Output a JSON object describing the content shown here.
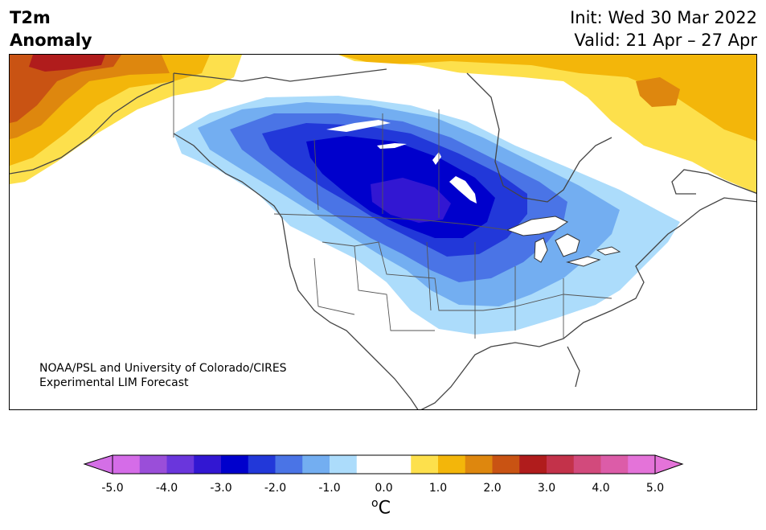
{
  "header": {
    "title_line1": "T2m",
    "title_line2": "Anomaly",
    "init_label": "Init: Wed 30 Mar 2022",
    "valid_label": "Valid: 21 Apr – 27 Apr"
  },
  "credit": {
    "line1": "NOAA/PSL and University of Colorado/CIRES",
    "line2": "Experimental LIM Forecast"
  },
  "colorbar": {
    "unit_base": "C",
    "unit_prefix": "o",
    "ticks": [
      "-5.0",
      "-4.0",
      "-3.0",
      "-2.0",
      "-1.0",
      "0.0",
      "1.0",
      "2.0",
      "3.0",
      "4.0",
      "5.0"
    ],
    "colors": [
      "#d56ce8",
      "#9a4ed9",
      "#6a36dc",
      "#3217d2",
      "#0000cc",
      "#2238d9",
      "#4a74e6",
      "#73aef1",
      "#acdcfb",
      "#ffffff",
      "#ffffff",
      "#fde04c",
      "#f3b60a",
      "#de870e",
      "#c95313",
      "#b01c1c",
      "#c3324a",
      "#d24a7c",
      "#dc5ca8",
      "#e473d9"
    ],
    "under_color": "#d46fe6",
    "over_color": "#e473d9"
  },
  "map": {
    "land_color": "#ffffff",
    "water_color": "#ffffff",
    "anomaly_colors": {
      "cold_light": "#acdcfb",
      "cold_mid": "#73aef1",
      "cold_med": "#4a74e6",
      "cold_strong": "#2238d9",
      "cold_deep": "#0000cc",
      "cold_core": "#3217d2",
      "warm_light": "#fde04c",
      "warm_mid": "#f3b60a",
      "warm_strong": "#de870e",
      "warm_deep": "#c95313",
      "warm_core": "#b01c1c"
    }
  }
}
